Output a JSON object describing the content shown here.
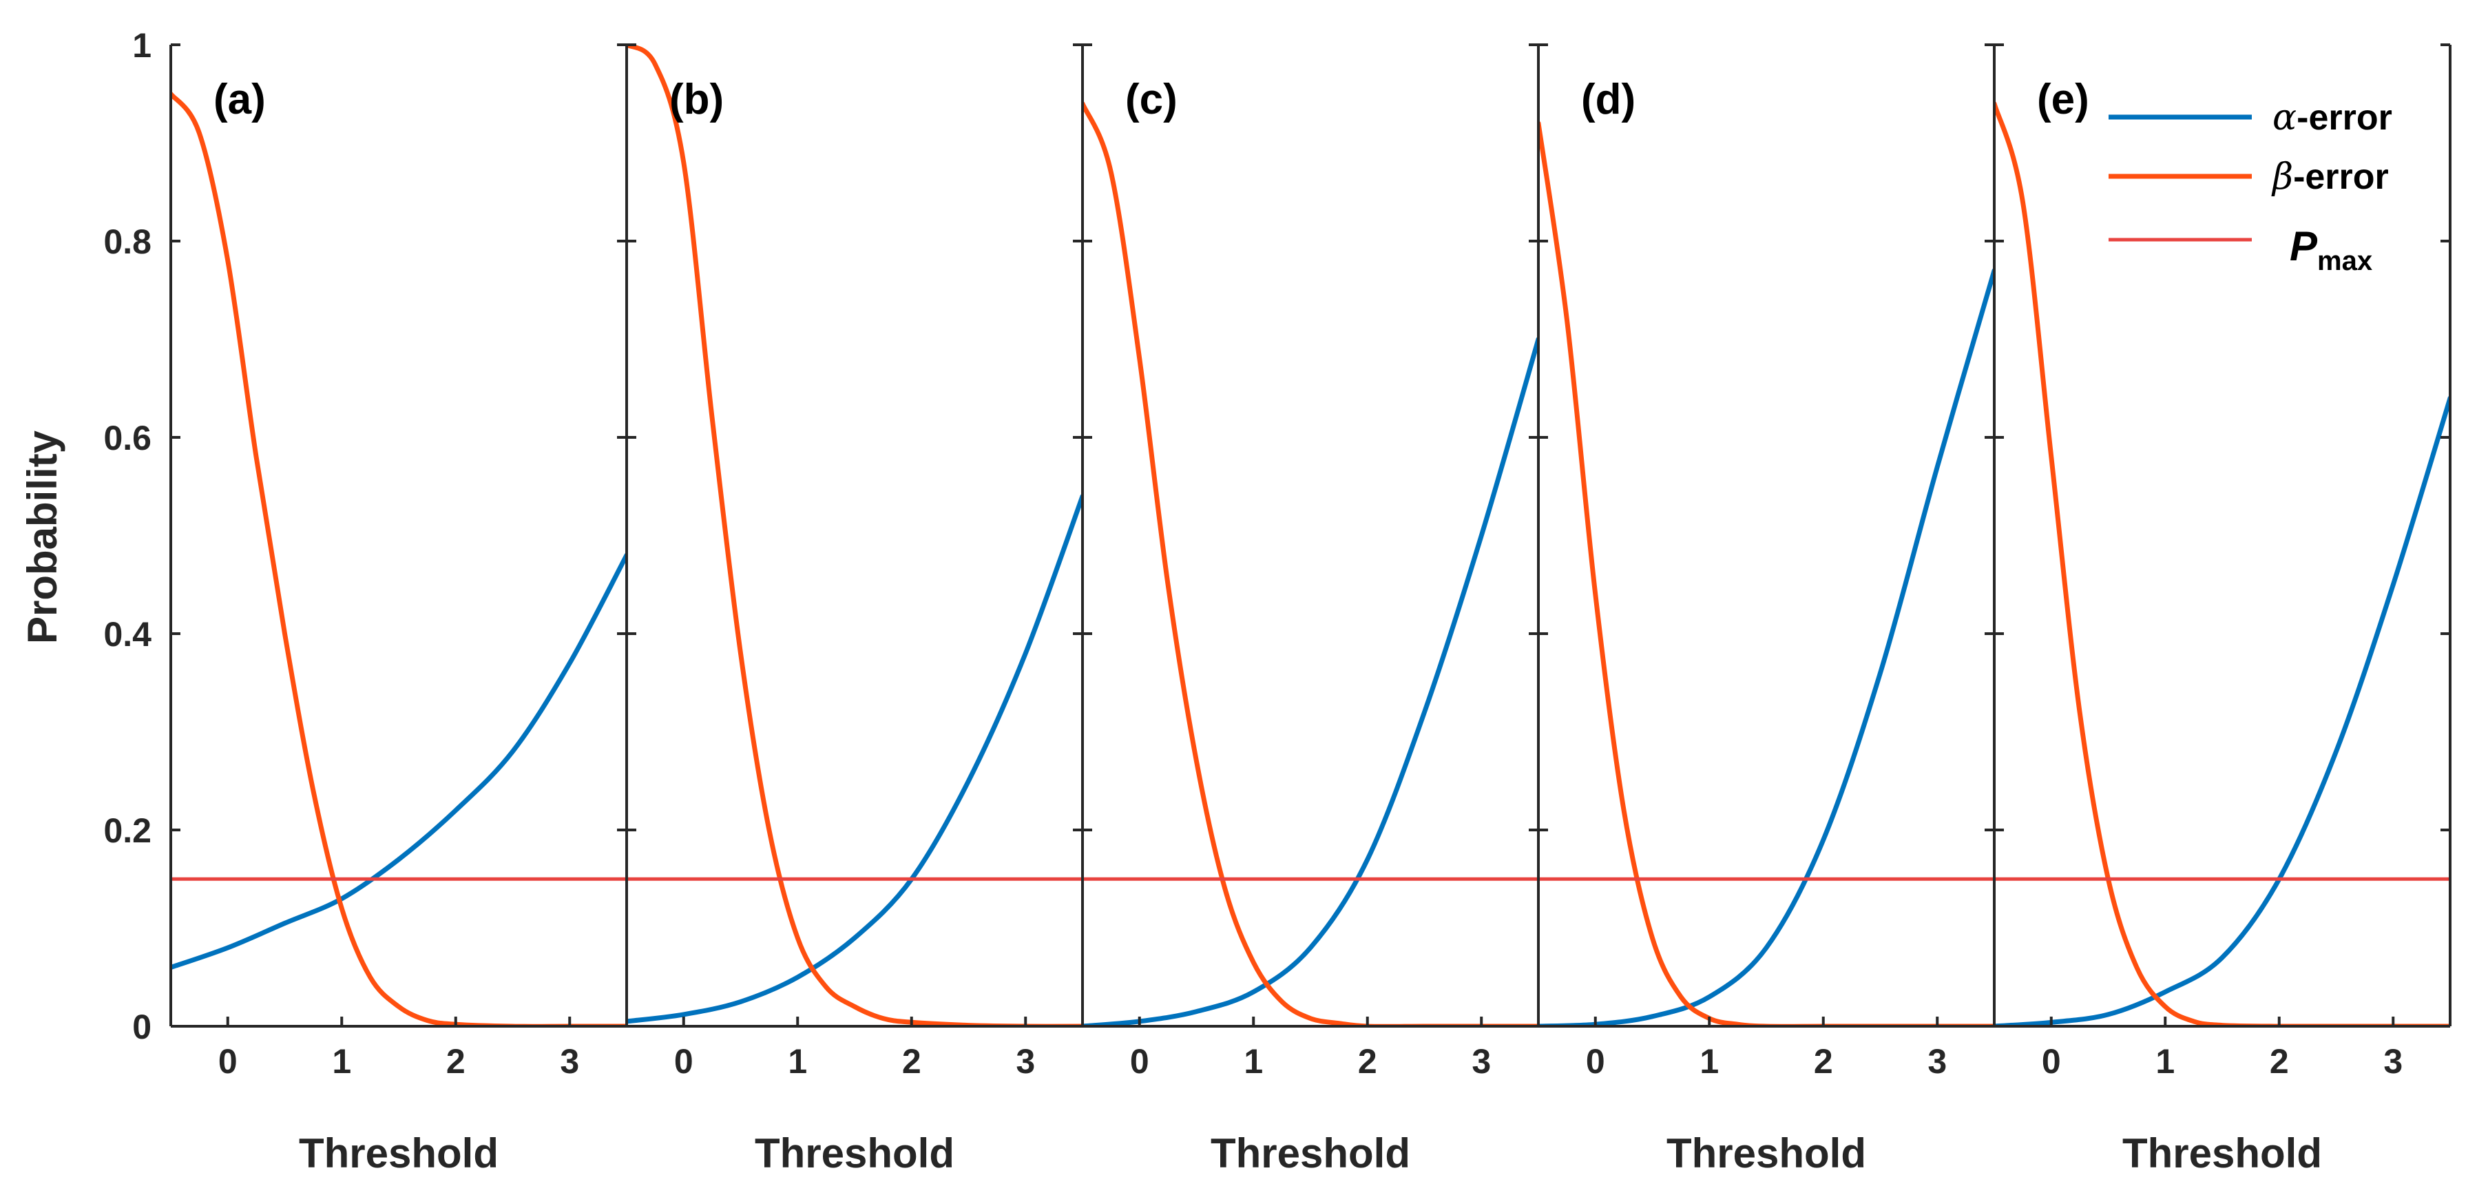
{
  "chart_data": {
    "type": "line",
    "ylabel": "Probability",
    "ylim": [
      0,
      1
    ],
    "yticks": [
      0,
      0.2,
      0.4,
      0.6,
      0.8,
      1
    ],
    "ytick_labels": [
      "0",
      "0.2",
      "0.4",
      "0.6",
      "0.8",
      "1"
    ],
    "xlim": [
      -0.5,
      3.5
    ],
    "xticks": [
      0,
      1,
      2,
      3
    ],
    "xtick_labels": [
      "0",
      "1",
      "2",
      "3"
    ],
    "p_max": 0.15,
    "legend": {
      "position": "top-right",
      "entries": [
        {
          "greek": "α",
          "label": "-error",
          "color": "#0072BD"
        },
        {
          "greek": "β",
          "label": "-error",
          "color": "#FF4F0F"
        },
        {
          "label": "P",
          "subscript": "max",
          "color": "#E8433F"
        }
      ]
    },
    "panels": [
      {
        "label": "(a)",
        "xlabel": "Threshold",
        "series": [
          {
            "name": "α-error",
            "color": "#0072BD",
            "x": [
              -0.5,
              0,
              0.5,
              1,
              1.5,
              2,
              2.5,
              3,
              3.5
            ],
            "y": [
              0.06,
              0.08,
              0.105,
              0.13,
              0.17,
              0.22,
              0.28,
              0.37,
              0.48
            ]
          },
          {
            "name": "β-error",
            "color": "#FF4F0F",
            "x": [
              -0.5,
              -0.25,
              0,
              0.25,
              0.5,
              0.75,
              1,
              1.25,
              1.5,
              1.75,
              2,
              2.5,
              3,
              3.5
            ],
            "y": [
              0.95,
              0.91,
              0.78,
              0.58,
              0.4,
              0.24,
              0.12,
              0.05,
              0.02,
              0.006,
              0.002,
              0.0,
              0.0,
              0.0
            ]
          },
          {
            "name": "P_max",
            "color": "#E8433F",
            "x": [
              -0.5,
              3.5
            ],
            "y": [
              0.15,
              0.15
            ]
          }
        ]
      },
      {
        "label": "(b)",
        "xlabel": "Threshold",
        "series": [
          {
            "name": "α-error",
            "color": "#0072BD",
            "x": [
              -0.5,
              0,
              0.5,
              1,
              1.5,
              2,
              2.5,
              3,
              3.5
            ],
            "y": [
              0.005,
              0.012,
              0.025,
              0.05,
              0.09,
              0.15,
              0.25,
              0.38,
              0.54
            ]
          },
          {
            "name": "β-error",
            "color": "#FF4F0F",
            "x": [
              -0.5,
              -0.25,
              0,
              0.25,
              0.5,
              0.75,
              1,
              1.25,
              1.5,
              1.75,
              2,
              2.5,
              3,
              3.5
            ],
            "y": [
              1.0,
              0.98,
              0.88,
              0.62,
              0.38,
              0.2,
              0.09,
              0.04,
              0.02,
              0.008,
              0.004,
              0.001,
              0.0,
              0.0
            ]
          },
          {
            "name": "P_max",
            "color": "#E8433F",
            "x": [
              -0.5,
              3.5
            ],
            "y": [
              0.15,
              0.15
            ]
          }
        ]
      },
      {
        "label": "(c)",
        "xlabel": "Threshold",
        "series": [
          {
            "name": "α-error",
            "color": "#0072BD",
            "x": [
              -0.5,
              0,
              0.5,
              1,
              1.5,
              2,
              2.5,
              3,
              3.5
            ],
            "y": [
              0.0,
              0.005,
              0.015,
              0.035,
              0.08,
              0.17,
              0.32,
              0.5,
              0.7
            ]
          },
          {
            "name": "β-error",
            "color": "#FF4F0F",
            "x": [
              -0.5,
              -0.25,
              0,
              0.25,
              0.5,
              0.75,
              1,
              1.25,
              1.5,
              1.75,
              2,
              2.5,
              3,
              3.5
            ],
            "y": [
              0.94,
              0.87,
              0.68,
              0.45,
              0.27,
              0.14,
              0.065,
              0.025,
              0.008,
              0.003,
              0.0,
              0.0,
              0.0,
              0.0
            ]
          },
          {
            "name": "P_max",
            "color": "#E8433F",
            "x": [
              -0.5,
              3.5
            ],
            "y": [
              0.15,
              0.15
            ]
          }
        ]
      },
      {
        "label": "(d)",
        "xlabel": "Threshold",
        "series": [
          {
            "name": "α-error",
            "color": "#0072BD",
            "x": [
              -0.5,
              0,
              0.5,
              1,
              1.5,
              2,
              2.5,
              3,
              3.5
            ],
            "y": [
              0.0,
              0.002,
              0.01,
              0.03,
              0.08,
              0.19,
              0.36,
              0.57,
              0.77
            ]
          },
          {
            "name": "β-error",
            "color": "#FF4F0F",
            "x": [
              -0.5,
              -0.25,
              0,
              0.25,
              0.5,
              0.75,
              1,
              1.25,
              1.5,
              2,
              2.5,
              3,
              3.5
            ],
            "y": [
              0.92,
              0.72,
              0.44,
              0.22,
              0.09,
              0.03,
              0.008,
              0.002,
              0.0,
              0.0,
              0.0,
              0.0,
              0.0
            ]
          },
          {
            "name": "P_max",
            "color": "#E8433F",
            "x": [
              -0.5,
              3.5
            ],
            "y": [
              0.15,
              0.15
            ]
          }
        ]
      },
      {
        "label": "(e)",
        "xlabel": "Threshold",
        "series": [
          {
            "name": "α-error",
            "color": "#0072BD",
            "x": [
              -0.5,
              0,
              0.5,
              1,
              1.5,
              2,
              2.5,
              3,
              3.5
            ],
            "y": [
              0.0,
              0.004,
              0.012,
              0.035,
              0.07,
              0.15,
              0.28,
              0.45,
              0.64
            ]
          },
          {
            "name": "β-error",
            "color": "#FF4F0F",
            "x": [
              -0.5,
              -0.25,
              0,
              0.25,
              0.5,
              0.75,
              1,
              1.25,
              1.5,
              2,
              2.5,
              3,
              3.5
            ],
            "y": [
              0.94,
              0.84,
              0.58,
              0.32,
              0.15,
              0.06,
              0.02,
              0.005,
              0.001,
              0.0,
              0.0,
              0.0,
              0.0
            ]
          },
          {
            "name": "P_max",
            "color": "#E8433F",
            "x": [
              -0.5,
              3.5
            ],
            "y": [
              0.15,
              0.15
            ]
          }
        ]
      }
    ]
  }
}
